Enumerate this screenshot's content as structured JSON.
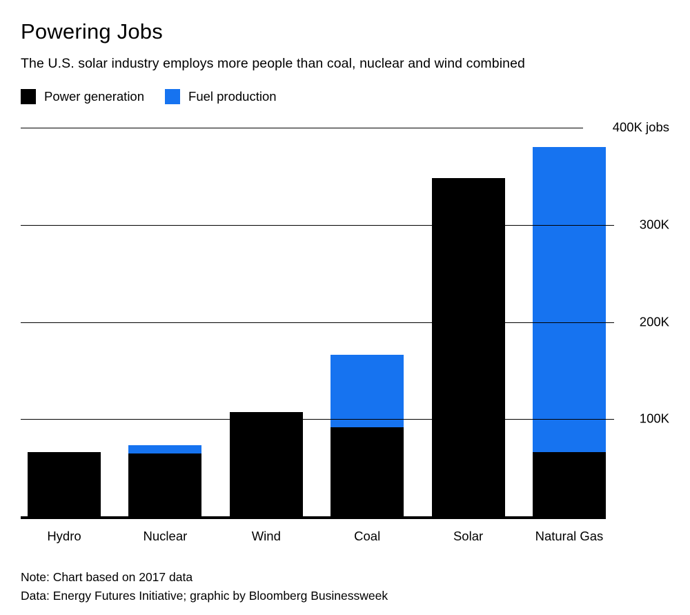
{
  "header": {
    "title": "Powering Jobs",
    "subtitle": "The U.S. solar industry employs more people than coal, nuclear and wind combined"
  },
  "colors": {
    "power_generation": "#000000",
    "fuel_production": "#1673f0",
    "grid": "#000000",
    "background": "#ffffff"
  },
  "chart_data": {
    "type": "bar",
    "stacked": true,
    "title": "Powering Jobs",
    "subtitle": "The U.S. solar industry employs more people than coal, nuclear and wind combined",
    "categories": [
      "Hydro",
      "Nuclear",
      "Wind",
      "Coal",
      "Solar",
      "Natural Gas"
    ],
    "series": [
      {
        "name": "Power generation",
        "color": "#000000",
        "values": [
          66,
          65,
          107,
          92,
          348,
          66
        ]
      },
      {
        "name": "Fuel production",
        "color": "#1673f0",
        "values": [
          0,
          8,
          0,
          74,
          0,
          314
        ]
      }
    ],
    "values_unit": "thousands of jobs",
    "ylim": [
      0,
      400
    ],
    "yticks": [
      {
        "value": 400,
        "label": "400K jobs"
      },
      {
        "value": 300,
        "label": "300K"
      },
      {
        "value": 200,
        "label": "200K"
      },
      {
        "value": 100,
        "label": "100K"
      }
    ],
    "grid": true,
    "legend_position": "top"
  },
  "notes": {
    "line1": "Note: Chart based on 2017 data",
    "line2": "Data: Energy Futures Initiative; graphic by Bloomberg Businessweek"
  }
}
